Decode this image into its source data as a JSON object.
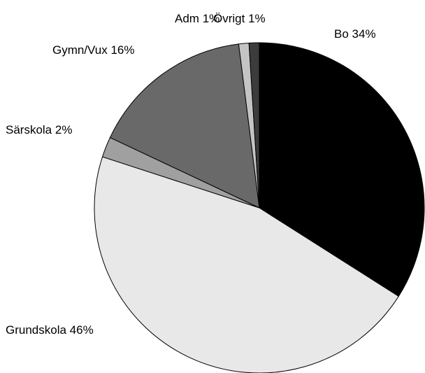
{
  "chart_data": {
    "type": "pie",
    "categories": [
      "Bo",
      "Grundskola",
      "Särskola",
      "Gymn/Vux",
      "Adm",
      "Övrigt"
    ],
    "values": [
      34,
      46,
      2,
      16,
      1,
      1
    ],
    "value_labels": [
      "34%",
      "46%",
      "2%",
      "16%",
      "1%",
      "1%"
    ],
    "colors": [
      "#000000",
      "#e8e8e8",
      "#a0a0a0",
      "#696969",
      "#c4c4c4",
      "#3c3c3c"
    ]
  }
}
